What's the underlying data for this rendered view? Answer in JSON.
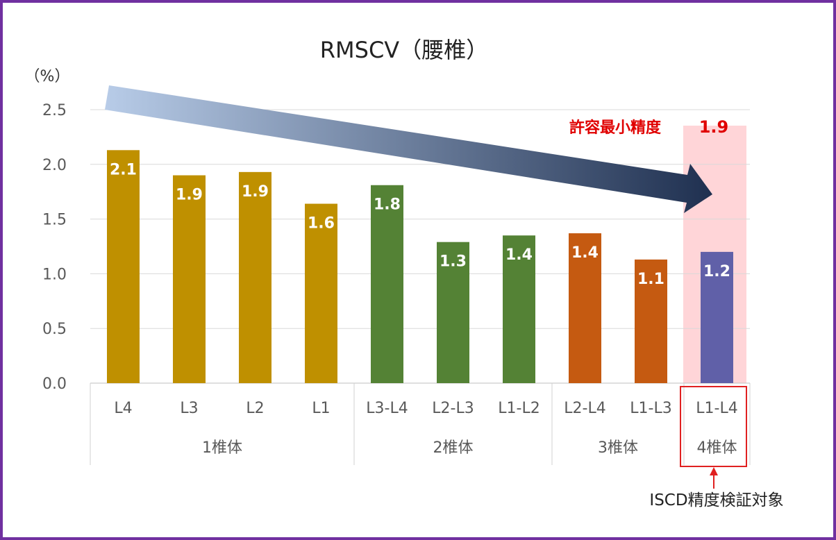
{
  "chart_data": {
    "type": "bar",
    "title": "RMSCV（腰椎）",
    "ylabel": "（%）",
    "xlabel": "",
    "ylim": [
      0,
      2.5
    ],
    "yticks": [
      "0.0",
      "0.5",
      "1.0",
      "1.5",
      "2.0",
      "2.5"
    ],
    "grid": true,
    "categories": [
      "L4",
      "L3",
      "L2",
      "L1",
      "L3-L4",
      "L2-L3",
      "L1-L2",
      "L2-L4",
      "L1-L3",
      "L1-L4"
    ],
    "values": [
      2.13,
      1.9,
      1.93,
      1.64,
      1.81,
      1.29,
      1.35,
      1.37,
      1.13,
      1.2
    ],
    "data_labels": [
      "2.1",
      "1.9",
      "1.9",
      "1.6",
      "1.8",
      "1.3",
      "1.4",
      "1.4",
      "1.1",
      "1.2"
    ],
    "groups": [
      {
        "label": "1椎体",
        "start": 0,
        "count": 4,
        "color": "#bf9000"
      },
      {
        "label": "2椎体",
        "start": 4,
        "count": 3,
        "color": "#548235"
      },
      {
        "label": "3椎体",
        "start": 7,
        "count": 2,
        "color": "#c55a11"
      },
      {
        "label": "4椎体",
        "start": 9,
        "count": 1,
        "color": "#6060a8"
      }
    ],
    "annotations": {
      "threshold_label": "許容最小精度",
      "threshold_value": "1.9",
      "target_label": "ISCD精度検証対象"
    }
  },
  "colors": {
    "frame": "#7030a0",
    "highlight_fill": "#ffd5d8",
    "highlight_box": "#e02020",
    "annotation_text": "#e00000",
    "arrow_start": "#b8cce8",
    "arrow_end": "#1f3050"
  }
}
